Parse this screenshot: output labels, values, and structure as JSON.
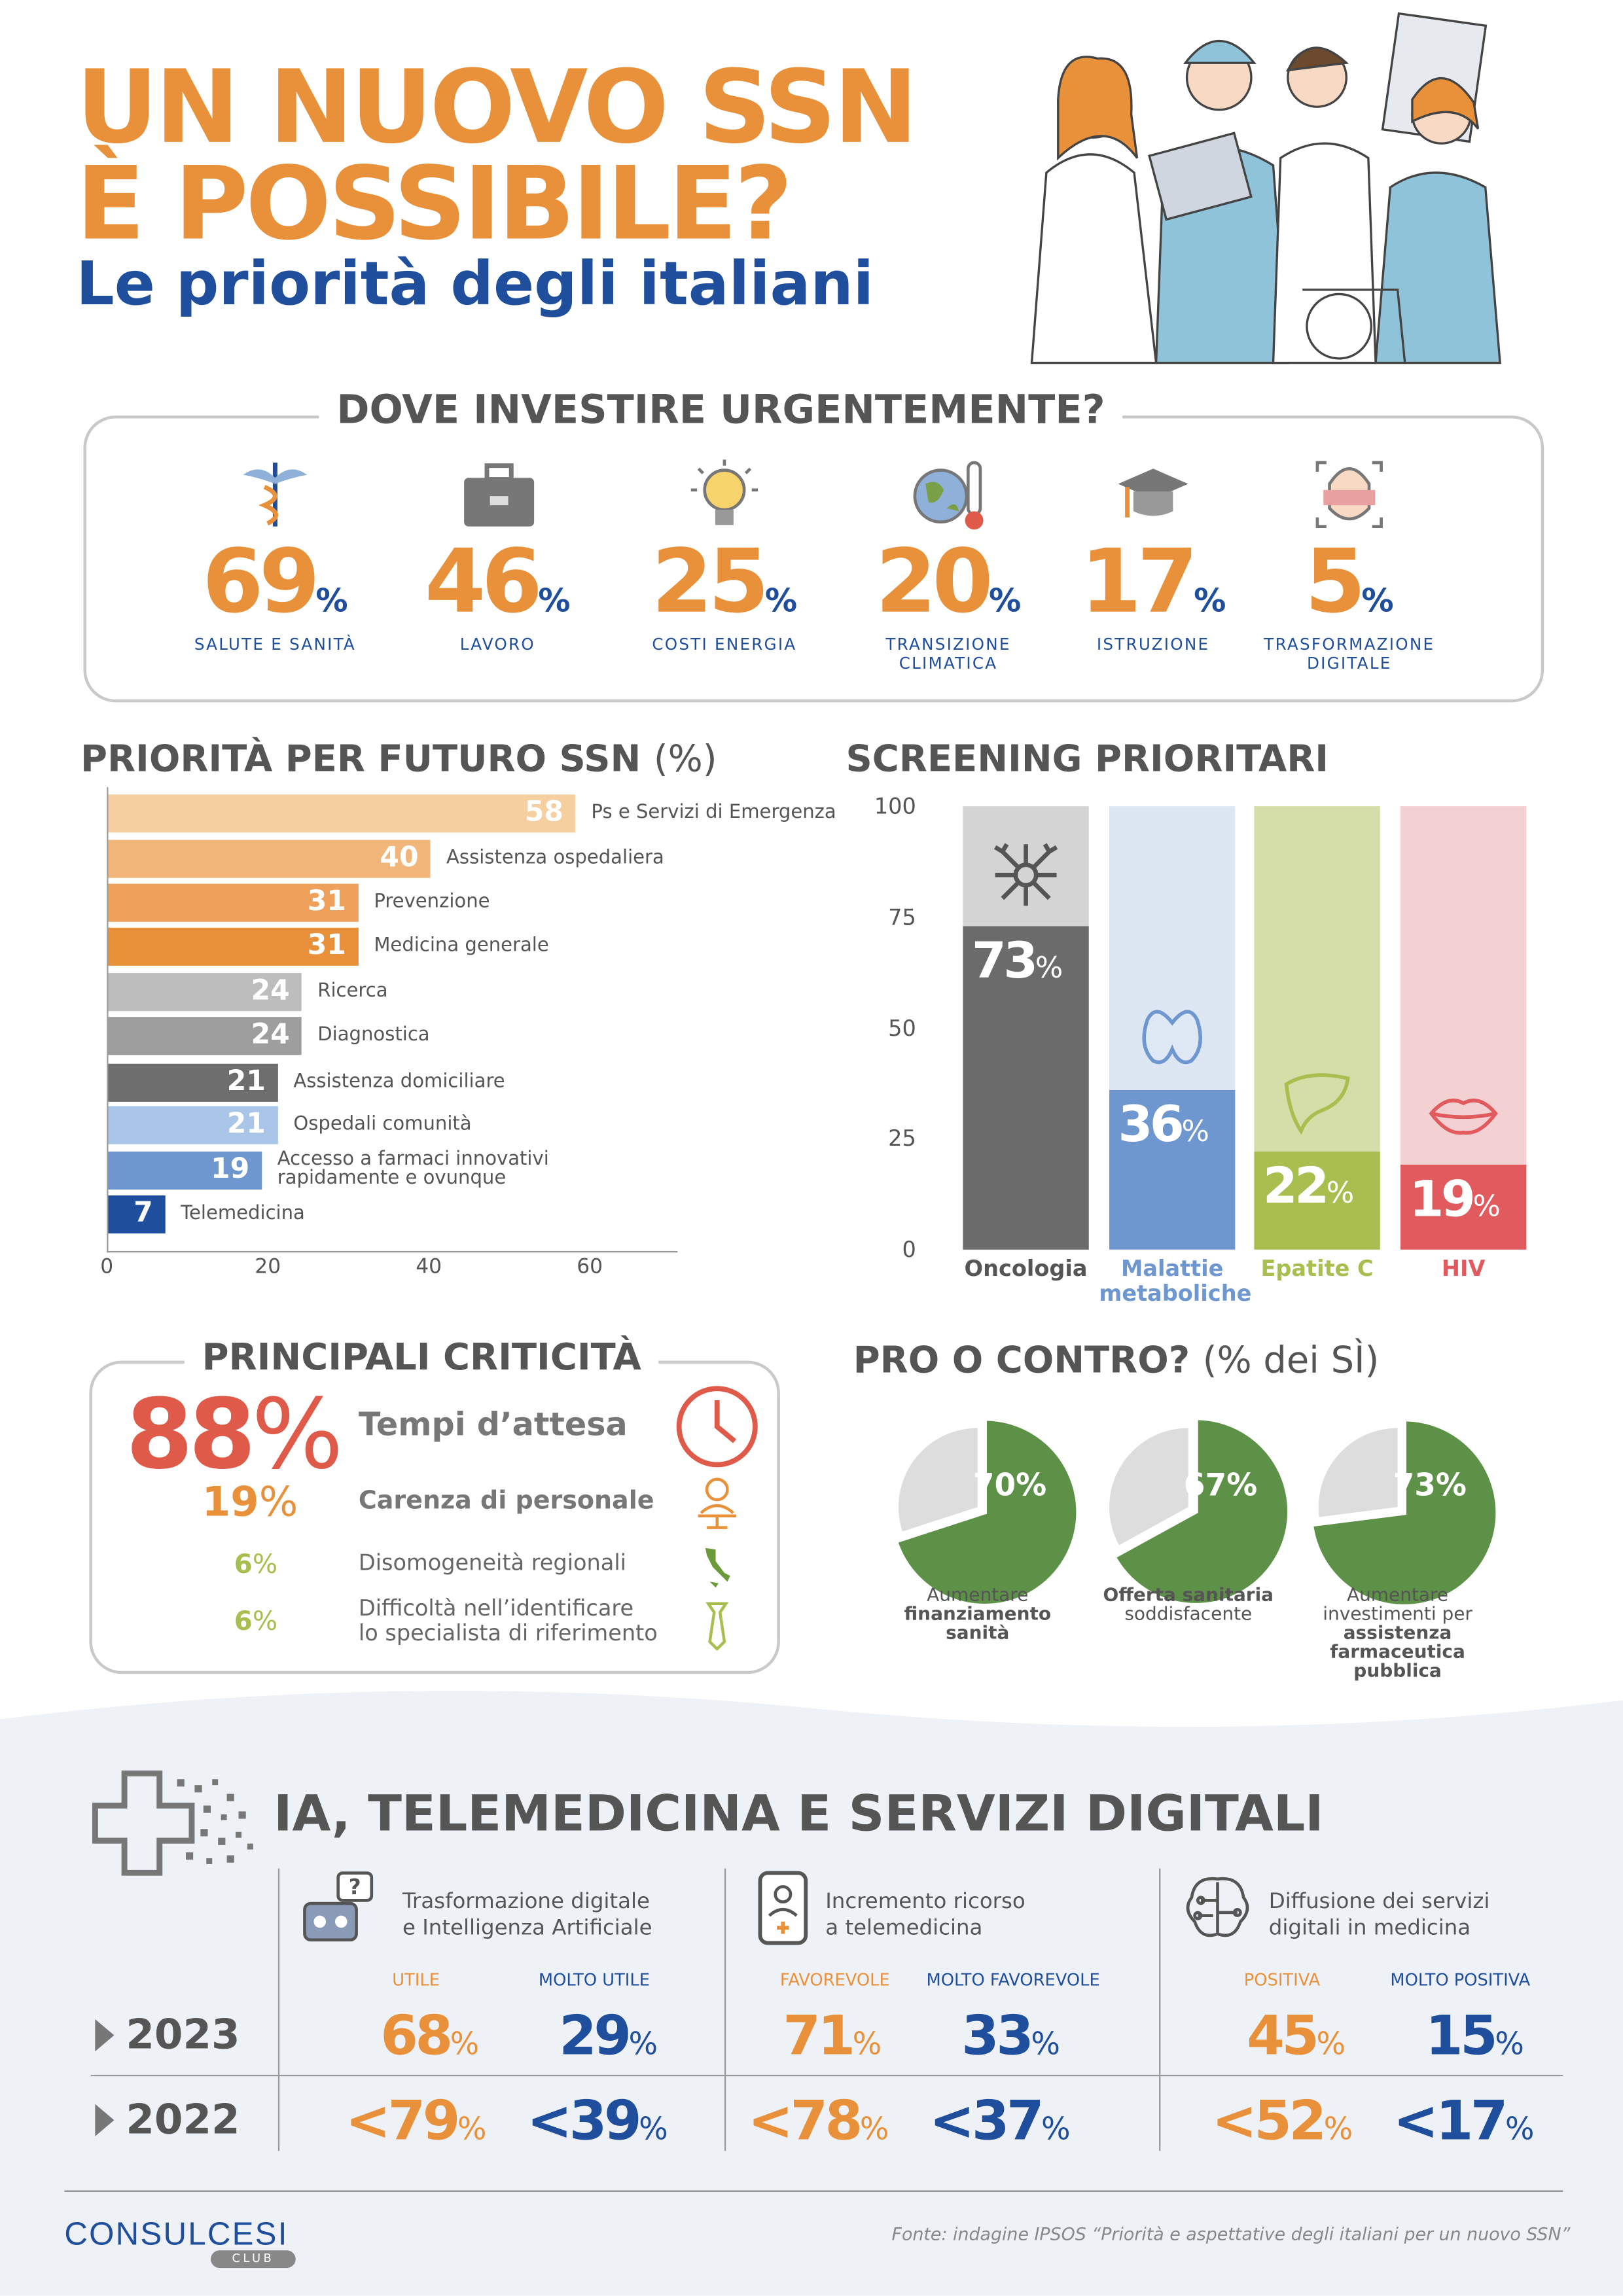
{
  "header": {
    "title_line1": "UN NUOVO SSN",
    "title_line2": "È POSSIBILE?",
    "subtitle": "Le priorità degli italiani"
  },
  "colors": {
    "orange": "#E8913A",
    "blue": "#1F4E9C",
    "gray": "#555555",
    "green": "#5E9148",
    "red": "#E05A4A"
  },
  "investire": {
    "title": "DOVE INVESTIRE URGENTEMENTE?",
    "items": [
      {
        "value": "69",
        "pct": "%",
        "label": "SALUTE E SANITÀ",
        "icon": "caduceus-icon"
      },
      {
        "value": "46",
        "pct": "%",
        "label": "LAVORO",
        "icon": "briefcase-icon"
      },
      {
        "value": "25",
        "pct": "%",
        "label": "COSTI ENERGIA",
        "icon": "lightbulb-icon"
      },
      {
        "value": "20",
        "pct": "%",
        "label": "TRANSIZIONE CLIMATICA",
        "icon": "globe-thermometer-icon"
      },
      {
        "value": "17",
        "pct": "%",
        "label": "ISTRUZIONE",
        "icon": "graduation-cap-icon"
      },
      {
        "value": "5",
        "pct": "%",
        "label": "TRASFORMAZIONE DIGITALE",
        "icon": "face-scan-icon"
      }
    ]
  },
  "chart_data": [
    {
      "type": "bar",
      "orientation": "horizontal",
      "title": "PRIORITÀ PER FUTURO SSN",
      "title_unit": "(%)",
      "categories": [
        "Ps e Servizi di Emergenza",
        "Assistenza ospedaliera",
        "Prevenzione",
        "Medicina generale",
        "Ricerca",
        "Diagnostica",
        "Assistenza domiciliare",
        "Ospedali comunità",
        "Accesso a farmaci innovativi rapidamente e ovunque",
        "Telemedicina"
      ],
      "values": [
        58,
        40,
        31,
        31,
        24,
        24,
        21,
        21,
        19,
        7
      ],
      "colors": [
        "#F6CFA0",
        "#F2B57A",
        "#EFA05A",
        "#E8913A",
        "#BDBDBD",
        "#9E9E9E",
        "#6E6E6E",
        "#A9C6E8",
        "#6F97CF",
        "#1F4E9C"
      ],
      "xlim": [
        0,
        60
      ],
      "xticks": [
        "0",
        "20",
        "40",
        "60"
      ],
      "grid": false
    },
    {
      "type": "bar",
      "orientation": "vertical",
      "stacked_background": true,
      "title": "SCREENING PRIORITARI",
      "categories": [
        "Oncologia",
        "Malattie metaboliche",
        "Epatite C",
        "HIV"
      ],
      "values": [
        73,
        36,
        22,
        19
      ],
      "fill_colors": [
        "#6B6B6B",
        "#6F97CF",
        "#A8BF4F",
        "#E05A5E"
      ],
      "bg_colors": [
        "#D4D4D4",
        "#DDE6F3",
        "#D5DDA8",
        "#F3D0D2"
      ],
      "label_colors": [
        "#555555",
        "#6F97CF",
        "#A8BF4F",
        "#E05A5E"
      ],
      "icons": [
        "neuron-icon",
        "thyroid-icon",
        "liver-icon",
        "lips-icon"
      ],
      "ylim": [
        0,
        100
      ],
      "yticks": [
        "100",
        "75",
        "50",
        "25",
        "0"
      ],
      "grid": false
    },
    {
      "type": "pie",
      "title": "PRO O CONTRO?",
      "title_note": "(% dei SÌ)",
      "slices": [
        {
          "value": 70,
          "label_plain1": "Aumentare",
          "label_bold1": "finanziamento",
          "label_bold2": "sanità"
        },
        {
          "value": 67,
          "label_bold1": "Offerta sanitaria",
          "label_plain1": "soddisfacente"
        },
        {
          "value": 73,
          "label_plain1": "Aumentare",
          "label_plain2": "investimenti per",
          "label_bold1": "assistenza farmaceutica",
          "label_bold2": "pubblica"
        }
      ],
      "color": "#5E9148",
      "rest_color": "#DDDDDD"
    }
  ],
  "criticita": {
    "title": "PRINCIPALI CRITICITÀ",
    "items": [
      {
        "value": "88",
        "pct": "%",
        "text": "Tempi d’attesa",
        "icon": "clock-icon"
      },
      {
        "value": "19",
        "pct": "%",
        "text": "Carenza di personale",
        "icon": "desk-person-icon"
      },
      {
        "value": "6",
        "pct": "%",
        "text": "Disomogeneità regionali",
        "icon": "italy-map-icon"
      },
      {
        "value": "6",
        "pct": "%",
        "text1": "Difficoltà nell’identificare",
        "text2": "lo specialista di riferimento",
        "icon": "tie-icon"
      }
    ]
  },
  "digitale": {
    "title": "IA, TELEMEDICINA E SERVIZI DIGITALI",
    "years": [
      "2023",
      "2022"
    ],
    "columns": [
      {
        "h1": "Trasformazione digitale",
        "h2": "e Intelligenza Artificiale",
        "lbl_a": "UTILE",
        "lbl_b": "MOLTO UTILE",
        "y2023_a": "68",
        "y2023_b": "29",
        "y2022_a": "<79",
        "y2022_b": "<39",
        "icon": "robot-question-icon"
      },
      {
        "h1": "Incremento ricorso",
        "h2": "a telemedicina",
        "lbl_a": "FAVOREVOLE",
        "lbl_b": "MOLTO FAVOREVOLE",
        "y2023_a": "71",
        "y2023_b": "33",
        "y2022_a": "<78",
        "y2022_b": "<37",
        "icon": "phone-doctor-icon"
      },
      {
        "h1": "Diffusione dei servizi",
        "h2": "digitali in medicina",
        "lbl_a": "POSITIVA",
        "lbl_b": "MOLTO POSITIVA",
        "y2023_a": "45",
        "y2023_b": "15",
        "y2022_a": "<52",
        "y2022_b": "<17",
        "icon": "circuit-brain-icon"
      }
    ],
    "pct": "%"
  },
  "footer": {
    "logo": "CONSULCESI",
    "logo_sub": "CLUB",
    "source": "Fonte: indagine IPSOS “Priorità e aspettative degli italiani per un nuovo SSN”"
  }
}
